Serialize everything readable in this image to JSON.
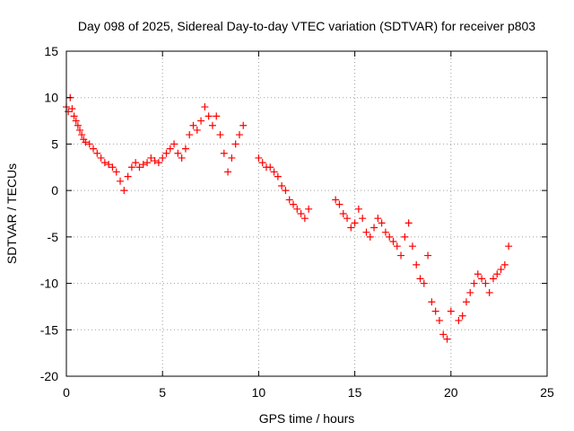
{
  "chart_data": {
    "type": "scatter",
    "title": "Day 098 of 2025, Sidereal Day-to-day VTEC variation (SDTVAR) for receiver p803",
    "xlabel": "GPS time / hours",
    "ylabel": "SDTVAR / TECUs",
    "xlim": [
      0,
      25
    ],
    "ylim": [
      -20,
      15
    ],
    "xticks": [
      0,
      5,
      10,
      15,
      20,
      25
    ],
    "yticks": [
      -20,
      -15,
      -10,
      -5,
      0,
      5,
      10,
      15
    ],
    "grid": true,
    "marker": "+",
    "color": "#ff0000",
    "series": [
      {
        "name": "SDTVAR",
        "x": [
          0.0,
          0.1,
          0.2,
          0.3,
          0.4,
          0.5,
          0.6,
          0.7,
          0.8,
          0.9,
          1.0,
          1.2,
          1.4,
          1.6,
          1.8,
          2.0,
          2.2,
          2.4,
          2.6,
          2.8,
          3.0,
          3.2,
          3.4,
          3.6,
          3.8,
          4.0,
          4.2,
          4.4,
          4.6,
          4.8,
          5.0,
          5.2,
          5.4,
          5.6,
          5.8,
          6.0,
          6.2,
          6.4,
          6.6,
          6.8,
          7.0,
          7.2,
          7.4,
          7.6,
          7.8,
          8.0,
          8.2,
          8.4,
          8.6,
          8.8,
          9.0,
          9.2,
          10.0,
          10.2,
          10.4,
          10.6,
          10.8,
          11.0,
          11.2,
          11.4,
          11.6,
          11.8,
          12.0,
          12.2,
          12.4,
          12.6,
          14.0,
          14.2,
          14.4,
          14.6,
          14.8,
          15.0,
          15.2,
          15.4,
          15.6,
          15.8,
          16.0,
          16.2,
          16.4,
          16.6,
          16.8,
          17.0,
          17.2,
          17.4,
          17.6,
          17.8,
          18.0,
          18.2,
          18.4,
          18.6,
          18.8,
          19.0,
          19.2,
          19.4,
          19.6,
          19.8,
          20.0,
          20.4,
          20.6,
          20.8,
          21.0,
          21.2,
          21.4,
          21.6,
          21.8,
          22.0,
          22.2,
          22.4,
          22.6,
          22.8,
          23.0
        ],
        "y": [
          9.0,
          8.5,
          10.0,
          8.8,
          8.0,
          7.5,
          7.0,
          6.5,
          6.0,
          5.5,
          5.2,
          5.0,
          4.5,
          4.0,
          3.5,
          3.0,
          2.8,
          2.5,
          2.0,
          1.0,
          0.0,
          1.5,
          2.5,
          3.0,
          2.5,
          2.8,
          3.0,
          3.5,
          3.2,
          3.0,
          3.5,
          4.0,
          4.5,
          5.0,
          4.0,
          3.5,
          4.5,
          6.0,
          7.0,
          6.5,
          7.5,
          9.0,
          8.0,
          7.0,
          8.0,
          6.0,
          4.0,
          2.0,
          3.5,
          5.0,
          6.0,
          7.0,
          3.5,
          3.0,
          2.5,
          2.5,
          2.0,
          1.5,
          0.5,
          0.0,
          -1.0,
          -1.5,
          -2.0,
          -2.5,
          -3.0,
          -2.0,
          -1.0,
          -1.5,
          -2.5,
          -3.0,
          -4.0,
          -3.5,
          -2.0,
          -3.0,
          -4.5,
          -5.0,
          -4.0,
          -3.0,
          -3.5,
          -4.5,
          -5.0,
          -5.5,
          -6.0,
          -7.0,
          -5.0,
          -3.5,
          -6.0,
          -8.0,
          -9.5,
          -10.0,
          -7.0,
          -12.0,
          -13.0,
          -14.0,
          -15.5,
          -16.0,
          -13.0,
          -14.0,
          -13.5,
          -12.0,
          -11.0,
          -10.0,
          -9.0,
          -9.5,
          -10.0,
          -11.0,
          -9.5,
          -9.0,
          -8.5,
          -8.0,
          -6.0
        ]
      }
    ]
  }
}
